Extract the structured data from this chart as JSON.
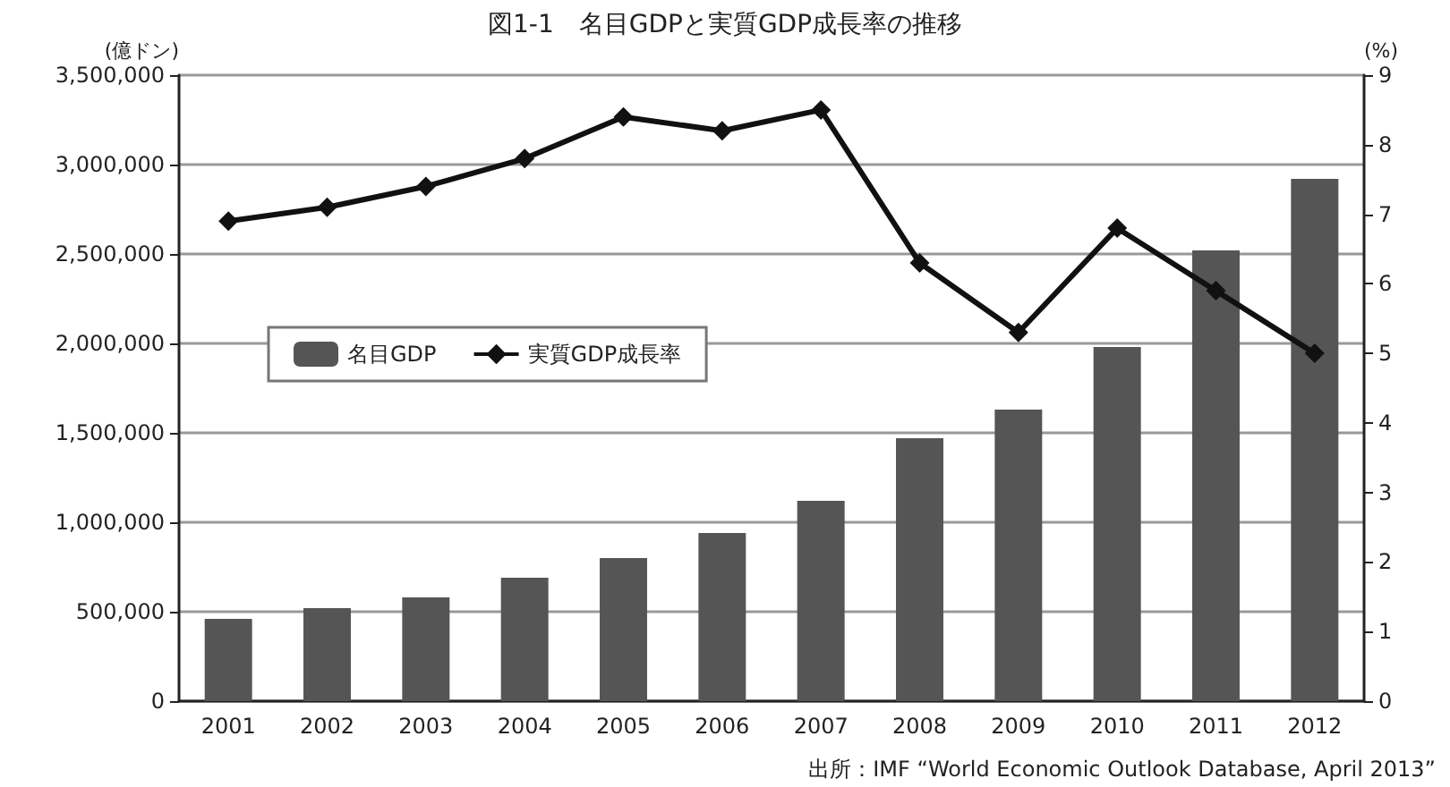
{
  "chart_data": {
    "type": "bar",
    "title": "図1-1　名目GDPと実質GDP成長率の推移",
    "ylabel": "(億ドン)",
    "y2label": "(%)",
    "categories": [
      "2001",
      "2002",
      "2003",
      "2004",
      "2005",
      "2006",
      "2007",
      "2008",
      "2009",
      "2010",
      "2011",
      "2012"
    ],
    "series": [
      {
        "name": "名目GDP",
        "color": "#555555",
        "values": [
          460000,
          520000,
          580000,
          690000,
          800000,
          940000,
          1120000,
          1470000,
          1630000,
          1980000,
          2520000,
          2920000
        ]
      },
      {
        "name": "実質GDP成長率",
        "type": "line",
        "axis": "y2",
        "color": "#111111",
        "values": [
          6.9,
          7.1,
          7.4,
          7.8,
          8.4,
          8.2,
          8.5,
          6.3,
          5.3,
          6.8,
          5.9,
          5.0
        ]
      }
    ],
    "ylim": [
      0,
      3500000
    ],
    "yticks": [
      {
        "value": 0,
        "label": "0"
      },
      {
        "value": 500000,
        "label": "500,000"
      },
      {
        "value": 1000000,
        "label": "1,000,000"
      },
      {
        "value": 1500000,
        "label": "1,500,000"
      },
      {
        "value": 2000000,
        "label": "2,000,000"
      },
      {
        "value": 2500000,
        "label": "2,500,000"
      },
      {
        "value": 3000000,
        "label": "3,000,000"
      },
      {
        "value": 3500000,
        "label": "3,500,000"
      }
    ],
    "y2lim": [
      0,
      9
    ],
    "y2ticks": [
      0,
      1,
      2,
      3,
      4,
      5,
      6,
      7,
      8,
      9
    ],
    "grid": "y",
    "legend": "left",
    "marker": "diamond",
    "line_style": "solid",
    "annotations": [
      "出所：IMF “World Economic Outlook Database, April 2013”"
    ]
  }
}
